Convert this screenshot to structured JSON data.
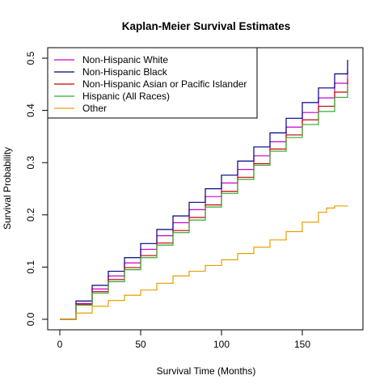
{
  "chart_data": {
    "type": "line",
    "title": "Kaplan-Meier Survival Estimates",
    "xlabel": "Survival Time (Months)",
    "ylabel": "Survival Probability",
    "xlim": [
      0,
      180
    ],
    "ylim": [
      0,
      0.5
    ],
    "xticks": [
      "0",
      "50",
      "100",
      "150"
    ],
    "yticks": [
      "0.0",
      "0.1",
      "0.2",
      "0.3",
      "0.4",
      "0.5"
    ],
    "grid": false,
    "legend_position": "top-left",
    "series": [
      {
        "name": "Non-Hispanic White",
        "color": "#cc00cc",
        "x": [
          0,
          10,
          20,
          30,
          40,
          50,
          60,
          70,
          80,
          90,
          100,
          110,
          120,
          130,
          140,
          150,
          160,
          170,
          178
        ],
        "y": [
          0,
          0.03,
          0.058,
          0.083,
          0.108,
          0.134,
          0.16,
          0.185,
          0.21,
          0.235,
          0.261,
          0.287,
          0.313,
          0.34,
          0.368,
          0.396,
          0.424,
          0.452,
          0.478
        ]
      },
      {
        "name": "Non-Hispanic Black",
        "color": "#000080",
        "x": [
          0,
          10,
          20,
          30,
          40,
          50,
          60,
          70,
          80,
          90,
          100,
          110,
          120,
          130,
          140,
          150,
          160,
          170,
          178
        ],
        "y": [
          0,
          0.035,
          0.065,
          0.092,
          0.118,
          0.145,
          0.172,
          0.198,
          0.224,
          0.25,
          0.276,
          0.303,
          0.33,
          0.357,
          0.385,
          0.415,
          0.443,
          0.47,
          0.497
        ]
      },
      {
        "name": "Non-Hispanic Asian or Pacific Islander",
        "color": "#cc0000",
        "x": [
          0,
          10,
          20,
          30,
          40,
          50,
          60,
          70,
          80,
          90,
          100,
          110,
          120,
          130,
          140,
          150,
          160,
          170,
          178
        ],
        "y": [
          0,
          0.028,
          0.053,
          0.076,
          0.099,
          0.122,
          0.146,
          0.17,
          0.195,
          0.219,
          0.245,
          0.272,
          0.298,
          0.326,
          0.353,
          0.382,
          0.408,
          0.435,
          0.46
        ]
      },
      {
        "name": "Hispanic (All Races)",
        "color": "#33aa33",
        "x": [
          0,
          10,
          20,
          30,
          40,
          50,
          60,
          70,
          80,
          90,
          100,
          110,
          120,
          130,
          140,
          150,
          160,
          170,
          178
        ],
        "y": [
          0,
          0.027,
          0.05,
          0.072,
          0.095,
          0.118,
          0.142,
          0.166,
          0.19,
          0.215,
          0.241,
          0.268,
          0.295,
          0.322,
          0.348,
          0.373,
          0.398,
          0.425,
          0.45
        ]
      },
      {
        "name": "Other",
        "color": "#e69f00",
        "x": [
          0,
          10,
          20,
          30,
          40,
          50,
          60,
          70,
          80,
          90,
          100,
          110,
          120,
          130,
          140,
          150,
          160,
          165,
          170,
          178
        ],
        "y": [
          0,
          0.012,
          0.025,
          0.036,
          0.046,
          0.056,
          0.069,
          0.083,
          0.092,
          0.103,
          0.114,
          0.126,
          0.138,
          0.152,
          0.168,
          0.186,
          0.205,
          0.213,
          0.217,
          0.218
        ]
      }
    ]
  }
}
